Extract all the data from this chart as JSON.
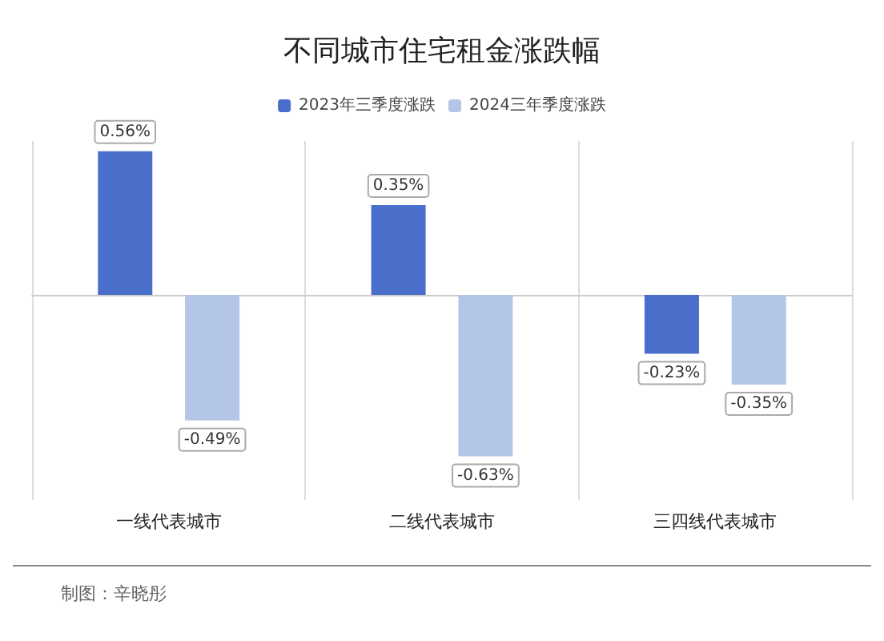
{
  "chart_data": {
    "type": "bar",
    "title": "不同城市住宅租金涨跌幅",
    "categories": [
      "一线代表城市",
      "二线代表城市",
      "三四线代表城市"
    ],
    "series": [
      {
        "name": "2023年三季度涨跌",
        "color": "#4a6fcb",
        "values": [
          0.56,
          0.35,
          -0.23
        ],
        "value_labels": [
          "0.56%",
          "0.35%",
          "-0.23%"
        ]
      },
      {
        "name": "2024三年季度涨跌",
        "color": "#b4c6e7",
        "values": [
          -0.49,
          -0.63,
          -0.35
        ],
        "value_labels": [
          "-0.49%",
          "-0.63%",
          "-0.35%"
        ]
      }
    ],
    "grid": "x",
    "legend": "top",
    "annotations": [
      "制图：辛晓彤"
    ]
  }
}
